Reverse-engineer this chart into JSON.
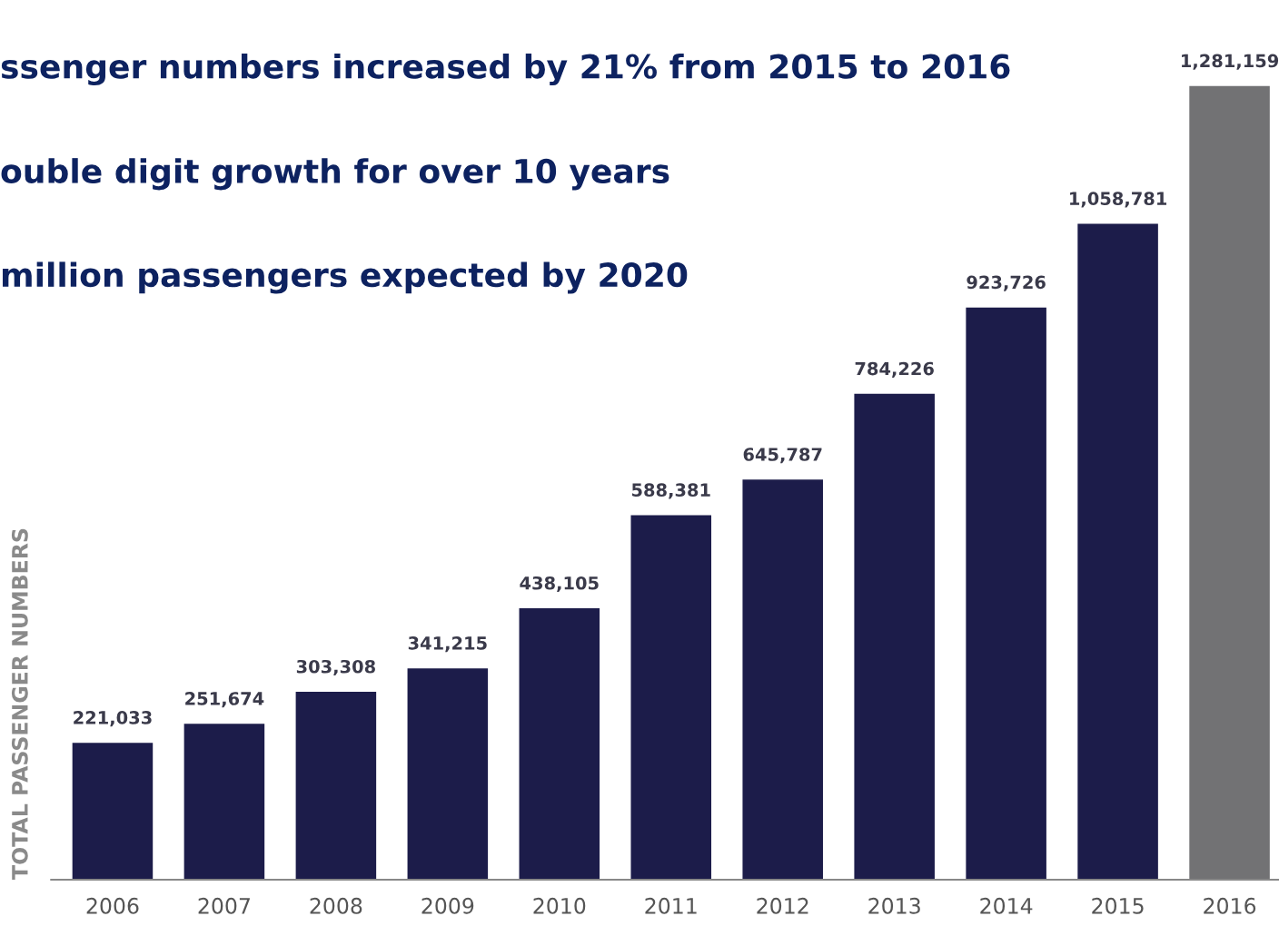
{
  "chart_data": {
    "type": "bar",
    "ylabel": "TOTAL PASSENGER NUMBERS",
    "categories": [
      "2006",
      "2007",
      "2008",
      "2009",
      "2010",
      "2011",
      "2012",
      "2013",
      "2014",
      "2015",
      "2016"
    ],
    "values": [
      221033,
      251674,
      303308,
      341215,
      438105,
      588381,
      645787,
      784226,
      923726,
      1058781,
      1281159
    ],
    "colors": [
      "#1c1c4a",
      "#1c1c4a",
      "#1c1c4a",
      "#1c1c4a",
      "#1c1c4a",
      "#1c1c4a",
      "#1c1c4a",
      "#1c1c4a",
      "#1c1c4a",
      "#1c1c4a",
      "#727274"
    ],
    "value_labels": [
      "221,033",
      "251,674",
      "303,308",
      "341,215",
      "438,105",
      "588,381",
      "645,787",
      "784,226",
      "923,726",
      "1,058,781",
      "1,281,159"
    ],
    "annotations": [
      "ssenger numbers increased by 21% from 2015 to 2016",
      "ouble digit growth for over 10 years",
      "million passengers expected by 2020"
    ],
    "grid": false,
    "legend": false
  }
}
